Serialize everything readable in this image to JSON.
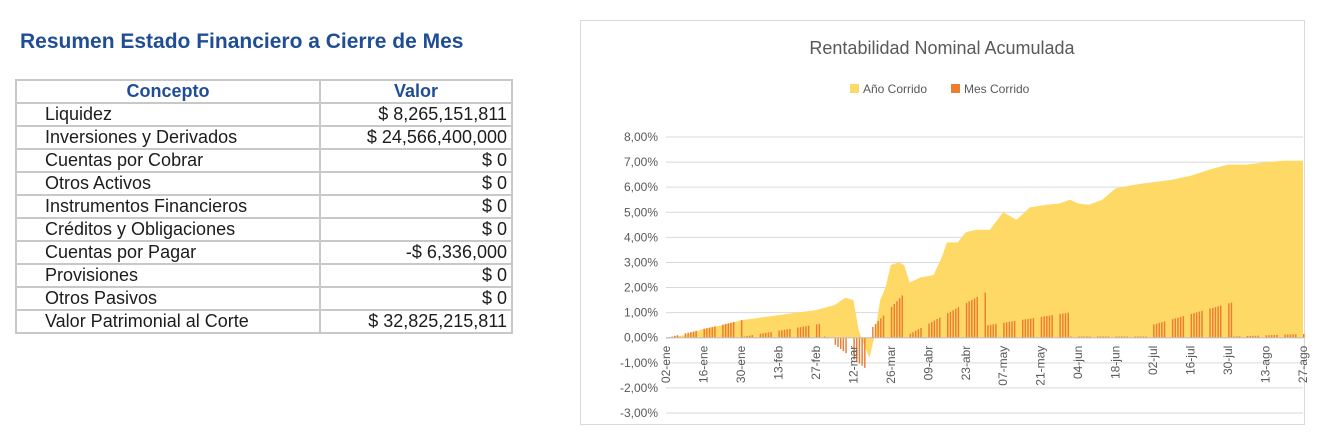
{
  "summary": {
    "title": "Resumen Estado Financiero a Cierre de Mes",
    "headers": [
      "Concepto",
      "Valor"
    ],
    "rows": [
      {
        "concepto": "Liquidez",
        "valor": "$ 8,265,151,811"
      },
      {
        "concepto": "Inversiones y Derivados",
        "valor": "$ 24,566,400,000"
      },
      {
        "concepto": "Cuentas por Cobrar",
        "valor": "$ 0"
      },
      {
        "concepto": "Otros Activos",
        "valor": "$ 0"
      },
      {
        "concepto": "Instrumentos Financieros",
        "valor": "$ 0"
      },
      {
        "concepto": "Créditos y Obligaciones",
        "valor": "$ 0"
      },
      {
        "concepto": "Cuentas por Pagar",
        "valor": "-$ 6,336,000"
      },
      {
        "concepto": "Provisiones",
        "valor": "$ 0"
      },
      {
        "concepto": "Otros Pasivos",
        "valor": "$ 0"
      },
      {
        "concepto": "Valor Patrimonial al Corte",
        "valor": "$ 32,825,215,811"
      }
    ]
  },
  "chart_data": {
    "type": "area",
    "title": "Rentabilidad Nominal Acumulada",
    "legend_position": "top",
    "y_range": [
      -3.0,
      8.0
    ],
    "y_ticks": [
      8,
      7,
      6,
      5,
      4,
      3,
      2,
      1,
      0,
      -1,
      -2,
      -3
    ],
    "y_tick_labels": [
      "8,00%",
      "7,00%",
      "6,00%",
      "5,00%",
      "4,00%",
      "3,00%",
      "2,00%",
      "1,00%",
      "0,00%",
      "-1,00%",
      "-2,00%",
      "-3,00%"
    ],
    "x_tick_labels": [
      "02-ene",
      "16-ene",
      "30-ene",
      "13-feb",
      "27-feb",
      "12-mar",
      "26-mar",
      "09-abr",
      "23-abr",
      "07-may",
      "21-may",
      "04-jun",
      "18-jun",
      "02-jul",
      "16-jul",
      "30-jul",
      "13-ago",
      "27-ago"
    ],
    "series": [
      {
        "name": "Año Corrido",
        "kind": "area",
        "color": "#FFD966",
        "points": [
          [
            0,
            0
          ],
          [
            7,
            0.1
          ],
          [
            14,
            0.35
          ],
          [
            21,
            0.5
          ],
          [
            28,
            0.7
          ],
          [
            35,
            0.8
          ],
          [
            42,
            0.9
          ],
          [
            49,
            1.0
          ],
          [
            56,
            1.1
          ],
          [
            63,
            1.3
          ],
          [
            67,
            1.6
          ],
          [
            70,
            1.5
          ],
          [
            72,
            0.3
          ],
          [
            74,
            -0.3
          ],
          [
            76,
            -0.8
          ],
          [
            78,
            0.1
          ],
          [
            80,
            1.5
          ],
          [
            82,
            2.0
          ],
          [
            84,
            2.9
          ],
          [
            87,
            3.0
          ],
          [
            89,
            2.9
          ],
          [
            91,
            2.2
          ],
          [
            95,
            2.4
          ],
          [
            100,
            2.5
          ],
          [
            103,
            3.2
          ],
          [
            105,
            3.8
          ],
          [
            109,
            3.8
          ],
          [
            112,
            4.2
          ],
          [
            116,
            4.3
          ],
          [
            121,
            4.3
          ],
          [
            126,
            5.0
          ],
          [
            131,
            4.7
          ],
          [
            136,
            5.2
          ],
          [
            142,
            5.3
          ],
          [
            147,
            5.35
          ],
          [
            151,
            5.5
          ],
          [
            154,
            5.35
          ],
          [
            158,
            5.3
          ],
          [
            163,
            5.5
          ],
          [
            168,
            5.95
          ],
          [
            175,
            6.1
          ],
          [
            182,
            6.2
          ],
          [
            189,
            6.3
          ],
          [
            196,
            6.45
          ],
          [
            203,
            6.7
          ],
          [
            210,
            6.9
          ],
          [
            217,
            6.9
          ],
          [
            224,
            7.0
          ],
          [
            231,
            7.05
          ],
          [
            238,
            7.05
          ]
        ]
      },
      {
        "name": "Mes Corrido",
        "kind": "bar",
        "color": "#ED7D31",
        "segments": [
          {
            "start_day": 0,
            "end_day": 28,
            "start": 0.0,
            "end": 0.7
          },
          {
            "start_day": 29,
            "end_day": 57,
            "start": 0.05,
            "end": 0.55
          },
          {
            "start_day": 59,
            "end_day": 74,
            "start": 0.05,
            "end": -1.2
          },
          {
            "start_day": 75,
            "end_day": 89,
            "start": 0.2,
            "end": 1.8
          },
          {
            "start_day": 90,
            "end_day": 119,
            "start": 0.1,
            "end": 1.8
          },
          {
            "start_day": 120,
            "end_day": 150,
            "start": 0.5,
            "end": 1.0
          },
          {
            "start_day": 151,
            "end_day": 180,
            "start": 0.05,
            "end": 0.05
          },
          {
            "start_day": 181,
            "end_day": 211,
            "start": 0.5,
            "end": 1.4
          },
          {
            "start_day": 212,
            "end_day": 238,
            "start": 0.05,
            "end": 0.15
          }
        ]
      }
    ]
  }
}
